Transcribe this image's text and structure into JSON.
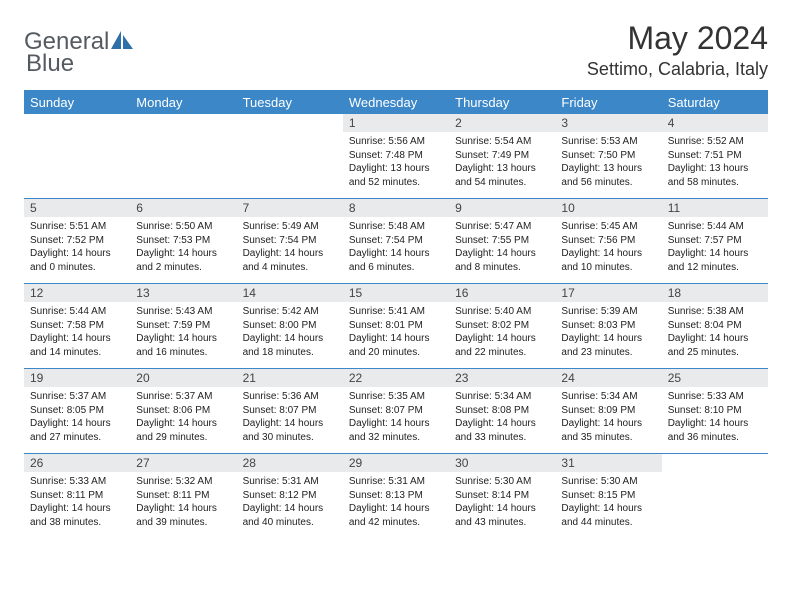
{
  "logo": {
    "line1": "General",
    "line2": "Blue"
  },
  "title": "May 2024",
  "location": "Settimo, Calabria, Italy",
  "colors": {
    "header_bg": "#3b87c8",
    "header_text": "#ffffff",
    "daynum_bg": "#e9eaeb",
    "border": "#3b87c8",
    "logo_text": "#555a60",
    "logo_accent": "#2f6fa8"
  },
  "weekdays": [
    "Sunday",
    "Monday",
    "Tuesday",
    "Wednesday",
    "Thursday",
    "Friday",
    "Saturday"
  ],
  "weeks": [
    [
      null,
      null,
      null,
      {
        "n": "1",
        "sunrise": "5:56 AM",
        "sunset": "7:48 PM",
        "dl_h": "13",
        "dl_m": "52"
      },
      {
        "n": "2",
        "sunrise": "5:54 AM",
        "sunset": "7:49 PM",
        "dl_h": "13",
        "dl_m": "54"
      },
      {
        "n": "3",
        "sunrise": "5:53 AM",
        "sunset": "7:50 PM",
        "dl_h": "13",
        "dl_m": "56"
      },
      {
        "n": "4",
        "sunrise": "5:52 AM",
        "sunset": "7:51 PM",
        "dl_h": "13",
        "dl_m": "58"
      }
    ],
    [
      {
        "n": "5",
        "sunrise": "5:51 AM",
        "sunset": "7:52 PM",
        "dl_h": "14",
        "dl_m": "0"
      },
      {
        "n": "6",
        "sunrise": "5:50 AM",
        "sunset": "7:53 PM",
        "dl_h": "14",
        "dl_m": "2"
      },
      {
        "n": "7",
        "sunrise": "5:49 AM",
        "sunset": "7:54 PM",
        "dl_h": "14",
        "dl_m": "4"
      },
      {
        "n": "8",
        "sunrise": "5:48 AM",
        "sunset": "7:54 PM",
        "dl_h": "14",
        "dl_m": "6"
      },
      {
        "n": "9",
        "sunrise": "5:47 AM",
        "sunset": "7:55 PM",
        "dl_h": "14",
        "dl_m": "8"
      },
      {
        "n": "10",
        "sunrise": "5:45 AM",
        "sunset": "7:56 PM",
        "dl_h": "14",
        "dl_m": "10"
      },
      {
        "n": "11",
        "sunrise": "5:44 AM",
        "sunset": "7:57 PM",
        "dl_h": "14",
        "dl_m": "12"
      }
    ],
    [
      {
        "n": "12",
        "sunrise": "5:44 AM",
        "sunset": "7:58 PM",
        "dl_h": "14",
        "dl_m": "14"
      },
      {
        "n": "13",
        "sunrise": "5:43 AM",
        "sunset": "7:59 PM",
        "dl_h": "14",
        "dl_m": "16"
      },
      {
        "n": "14",
        "sunrise": "5:42 AM",
        "sunset": "8:00 PM",
        "dl_h": "14",
        "dl_m": "18"
      },
      {
        "n": "15",
        "sunrise": "5:41 AM",
        "sunset": "8:01 PM",
        "dl_h": "14",
        "dl_m": "20"
      },
      {
        "n": "16",
        "sunrise": "5:40 AM",
        "sunset": "8:02 PM",
        "dl_h": "14",
        "dl_m": "22"
      },
      {
        "n": "17",
        "sunrise": "5:39 AM",
        "sunset": "8:03 PM",
        "dl_h": "14",
        "dl_m": "23"
      },
      {
        "n": "18",
        "sunrise": "5:38 AM",
        "sunset": "8:04 PM",
        "dl_h": "14",
        "dl_m": "25"
      }
    ],
    [
      {
        "n": "19",
        "sunrise": "5:37 AM",
        "sunset": "8:05 PM",
        "dl_h": "14",
        "dl_m": "27"
      },
      {
        "n": "20",
        "sunrise": "5:37 AM",
        "sunset": "8:06 PM",
        "dl_h": "14",
        "dl_m": "29"
      },
      {
        "n": "21",
        "sunrise": "5:36 AM",
        "sunset": "8:07 PM",
        "dl_h": "14",
        "dl_m": "30"
      },
      {
        "n": "22",
        "sunrise": "5:35 AM",
        "sunset": "8:07 PM",
        "dl_h": "14",
        "dl_m": "32"
      },
      {
        "n": "23",
        "sunrise": "5:34 AM",
        "sunset": "8:08 PM",
        "dl_h": "14",
        "dl_m": "33"
      },
      {
        "n": "24",
        "sunrise": "5:34 AM",
        "sunset": "8:09 PM",
        "dl_h": "14",
        "dl_m": "35"
      },
      {
        "n": "25",
        "sunrise": "5:33 AM",
        "sunset": "8:10 PM",
        "dl_h": "14",
        "dl_m": "36"
      }
    ],
    [
      {
        "n": "26",
        "sunrise": "5:33 AM",
        "sunset": "8:11 PM",
        "dl_h": "14",
        "dl_m": "38"
      },
      {
        "n": "27",
        "sunrise": "5:32 AM",
        "sunset": "8:11 PM",
        "dl_h": "14",
        "dl_m": "39"
      },
      {
        "n": "28",
        "sunrise": "5:31 AM",
        "sunset": "8:12 PM",
        "dl_h": "14",
        "dl_m": "40"
      },
      {
        "n": "29",
        "sunrise": "5:31 AM",
        "sunset": "8:13 PM",
        "dl_h": "14",
        "dl_m": "42"
      },
      {
        "n": "30",
        "sunrise": "5:30 AM",
        "sunset": "8:14 PM",
        "dl_h": "14",
        "dl_m": "43"
      },
      {
        "n": "31",
        "sunrise": "5:30 AM",
        "sunset": "8:15 PM",
        "dl_h": "14",
        "dl_m": "44"
      },
      null
    ]
  ]
}
